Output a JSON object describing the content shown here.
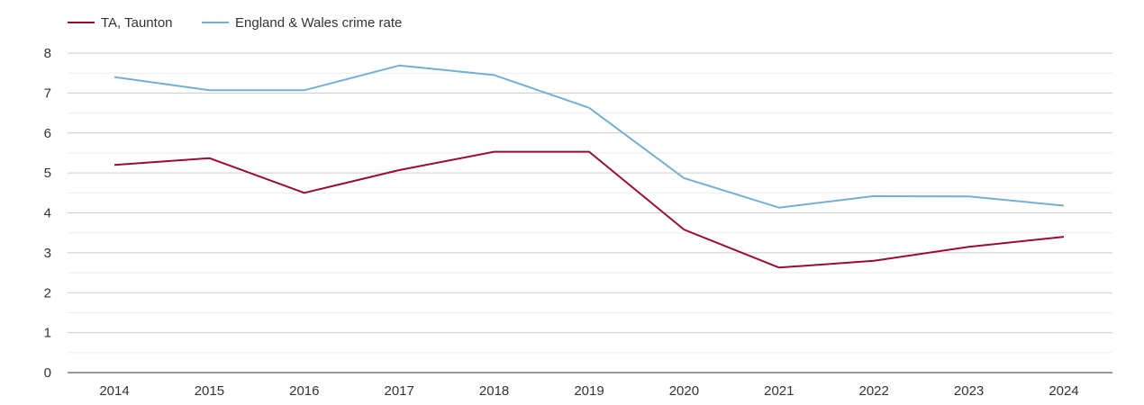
{
  "chart_data": {
    "type": "line",
    "title": "",
    "xlabel": "",
    "ylabel": "",
    "x": [
      "2014",
      "2015",
      "2016",
      "2017",
      "2018",
      "2019",
      "2020",
      "2021",
      "2022",
      "2023",
      "2024"
    ],
    "ylim": [
      0,
      8
    ],
    "yticks": [
      "0",
      "1",
      "2",
      "3",
      "4",
      "5",
      "6",
      "7",
      "8"
    ],
    "grid": true,
    "legend_position": "top-left",
    "series": [
      {
        "name": "TA, Taunton",
        "color": "#9b0b33",
        "values": [
          5.2,
          5.37,
          4.5,
          5.07,
          5.53,
          5.53,
          3.58,
          2.63,
          2.8,
          3.15,
          3.4
        ]
      },
      {
        "name": "England & Wales crime rate",
        "color": "#74b0d2",
        "values": [
          7.4,
          7.07,
          7.07,
          7.69,
          7.45,
          6.63,
          4.87,
          4.13,
          4.42,
          4.41,
          4.18
        ]
      }
    ]
  }
}
